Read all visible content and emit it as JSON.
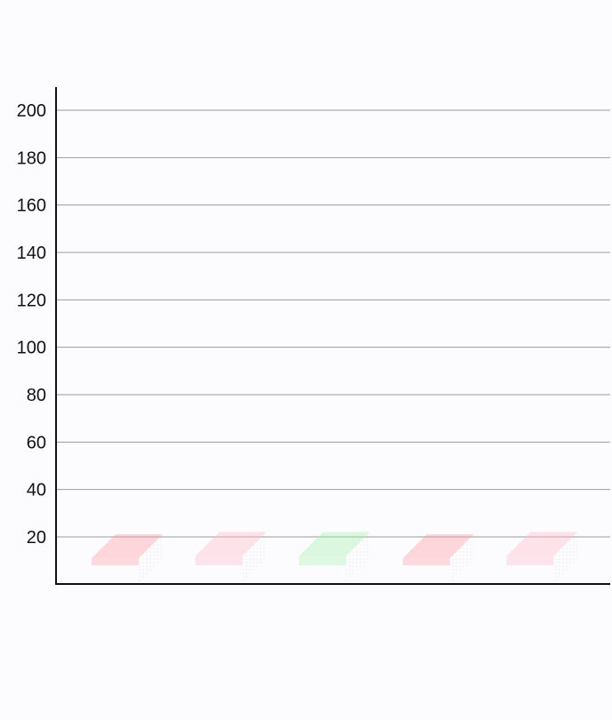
{
  "chart_data": {
    "type": "bar",
    "style": "3d",
    "title": "",
    "xlabel": "",
    "ylabel": "",
    "categories": [
      "",
      "",
      "",
      "",
      ""
    ],
    "values": [
      3,
      20,
      20,
      10,
      20
    ],
    "ylim": [
      0,
      210
    ],
    "yticks": [
      20,
      40,
      60,
      80,
      100,
      120,
      140,
      160,
      180,
      200
    ],
    "grid": true,
    "legend": "none",
    "colors": [
      "#ff9aa6",
      "#ffb8cc",
      "#a8f0b0",
      "#ff9aa6",
      "#ffb8cc"
    ],
    "bar_opacity": 0.35
  }
}
